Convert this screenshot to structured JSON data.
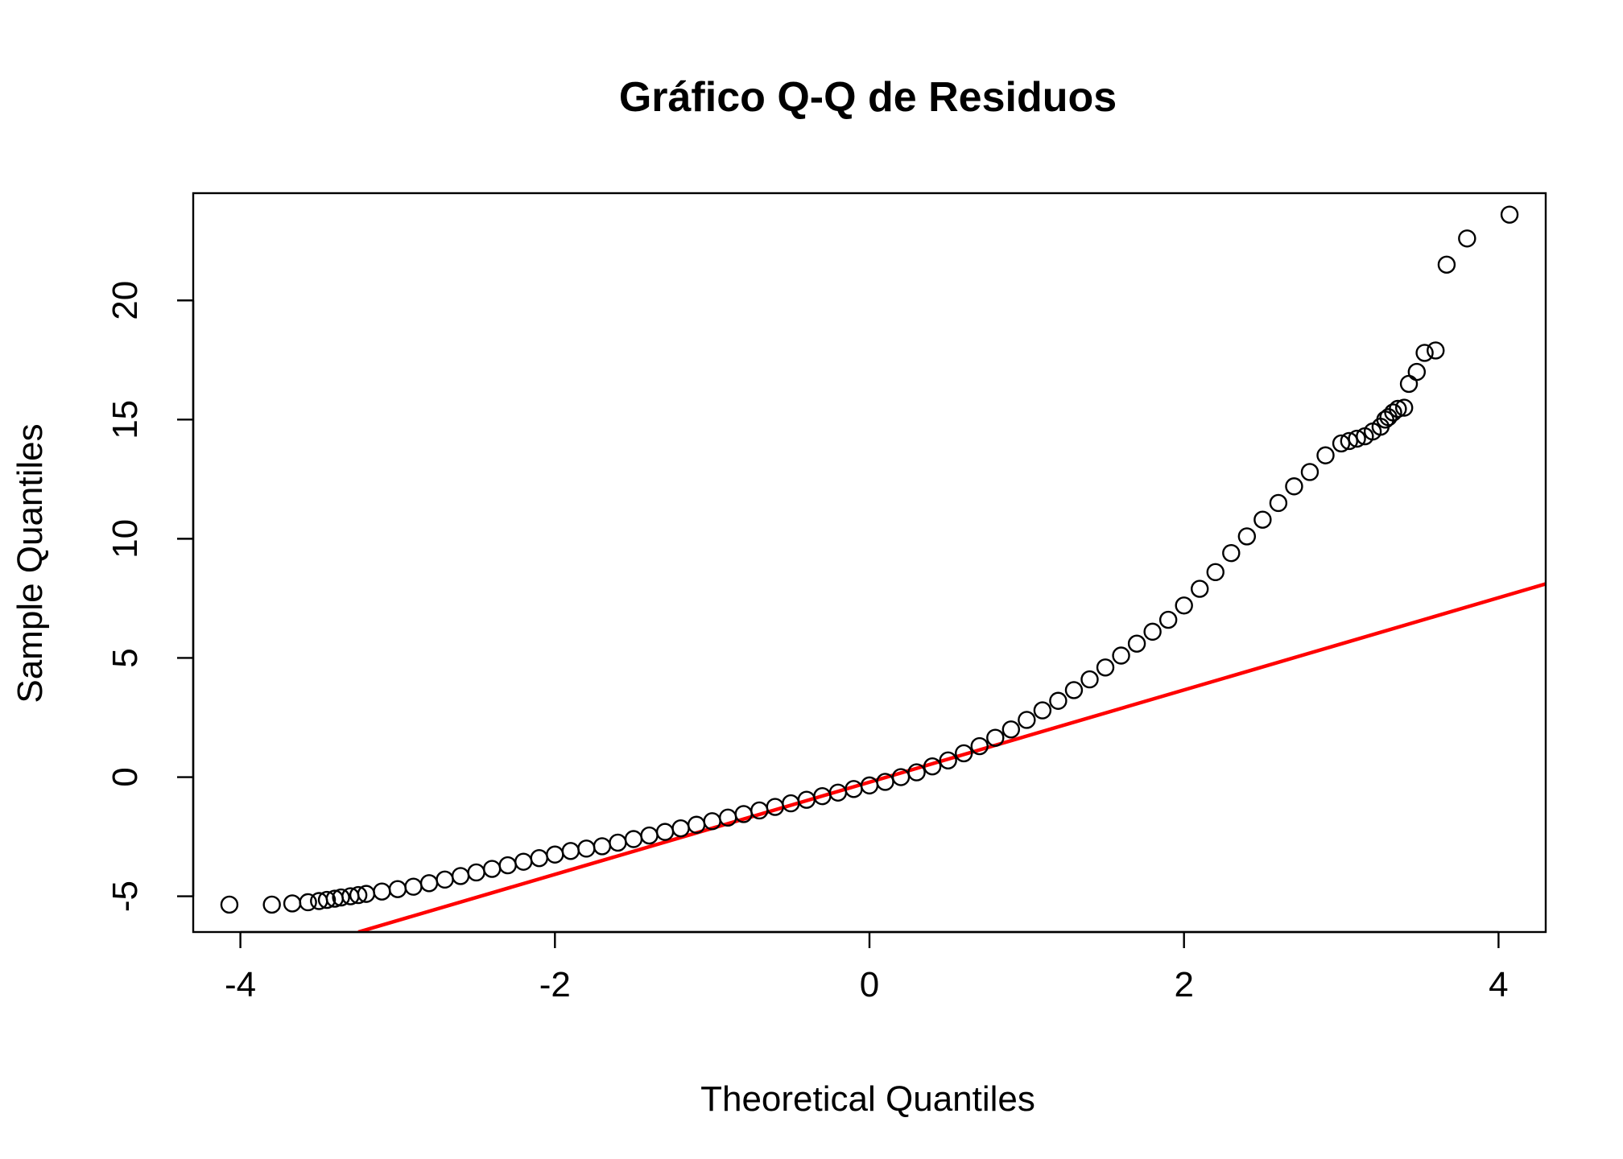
{
  "chart_data": {
    "type": "scatter",
    "title": "Gráfico Q-Q de Residuos",
    "xlabel": "Theoretical Quantiles",
    "ylabel": "Sample Quantiles",
    "xlim": [
      -4.3,
      4.3
    ],
    "ylim": [
      -6.5,
      24.5
    ],
    "x_ticks": [
      -4,
      -2,
      0,
      2,
      4
    ],
    "x_tick_labels": [
      "-4",
      "-2",
      "0",
      "2",
      "4"
    ],
    "y_ticks": [
      -5,
      0,
      5,
      10,
      15,
      20
    ],
    "y_tick_labels": [
      "-5",
      "0",
      "5",
      "10",
      "15",
      "20"
    ],
    "grid": false,
    "series": [
      {
        "kind": "points",
        "marker": "open-circle",
        "color": "#000000",
        "x": [
          -4.07,
          -3.8,
          -3.67,
          -3.57,
          -3.5,
          -3.45,
          -3.4,
          -3.36,
          -3.3,
          -3.25,
          -3.2,
          -3.1,
          -3.0,
          -2.9,
          -2.8,
          -2.7,
          -2.6,
          -2.5,
          -2.4,
          -2.3,
          -2.2,
          -2.1,
          -2.0,
          -1.9,
          -1.8,
          -1.7,
          -1.6,
          -1.5,
          -1.4,
          -1.3,
          -1.2,
          -1.1,
          -1.0,
          -0.9,
          -0.8,
          -0.7,
          -0.6,
          -0.5,
          -0.4,
          -0.3,
          -0.2,
          -0.1,
          0.0,
          0.1,
          0.2,
          0.3,
          0.4,
          0.5,
          0.6,
          0.7,
          0.8,
          0.9,
          1.0,
          1.1,
          1.2,
          1.3,
          1.4,
          1.5,
          1.6,
          1.7,
          1.8,
          1.9,
          2.0,
          2.1,
          2.2,
          2.3,
          2.4,
          2.5,
          2.6,
          2.7,
          2.8,
          2.9,
          3.0,
          3.05,
          3.1,
          3.15,
          3.2,
          3.25,
          3.28,
          3.3,
          3.33,
          3.36,
          3.4,
          3.43,
          3.48,
          3.53,
          3.6,
          3.67,
          3.8,
          4.07
        ],
        "y": [
          -5.35,
          -5.35,
          -5.3,
          -5.25,
          -5.2,
          -5.15,
          -5.1,
          -5.05,
          -5.0,
          -4.95,
          -4.9,
          -4.8,
          -4.7,
          -4.6,
          -4.45,
          -4.3,
          -4.15,
          -4.0,
          -3.85,
          -3.7,
          -3.55,
          -3.4,
          -3.25,
          -3.1,
          -3.0,
          -2.9,
          -2.75,
          -2.6,
          -2.45,
          -2.3,
          -2.15,
          -2.0,
          -1.85,
          -1.7,
          -1.55,
          -1.4,
          -1.25,
          -1.1,
          -0.95,
          -0.8,
          -0.65,
          -0.5,
          -0.35,
          -0.2,
          0.0,
          0.2,
          0.45,
          0.7,
          1.0,
          1.3,
          1.65,
          2.0,
          2.4,
          2.8,
          3.2,
          3.65,
          4.1,
          4.6,
          5.1,
          5.6,
          6.1,
          6.6,
          7.2,
          7.9,
          8.6,
          9.4,
          10.1,
          10.8,
          11.5,
          12.2,
          12.8,
          13.5,
          14.0,
          14.1,
          14.2,
          14.3,
          14.5,
          14.7,
          15.0,
          15.1,
          15.3,
          15.45,
          15.5,
          16.5,
          17.0,
          17.8,
          17.9,
          21.5,
          22.6,
          23.6
        ]
      },
      {
        "kind": "line",
        "color": "#ff0000",
        "x": [
          -3.25,
          4.4
        ],
        "y": [
          -6.5,
          8.3
        ]
      }
    ]
  }
}
